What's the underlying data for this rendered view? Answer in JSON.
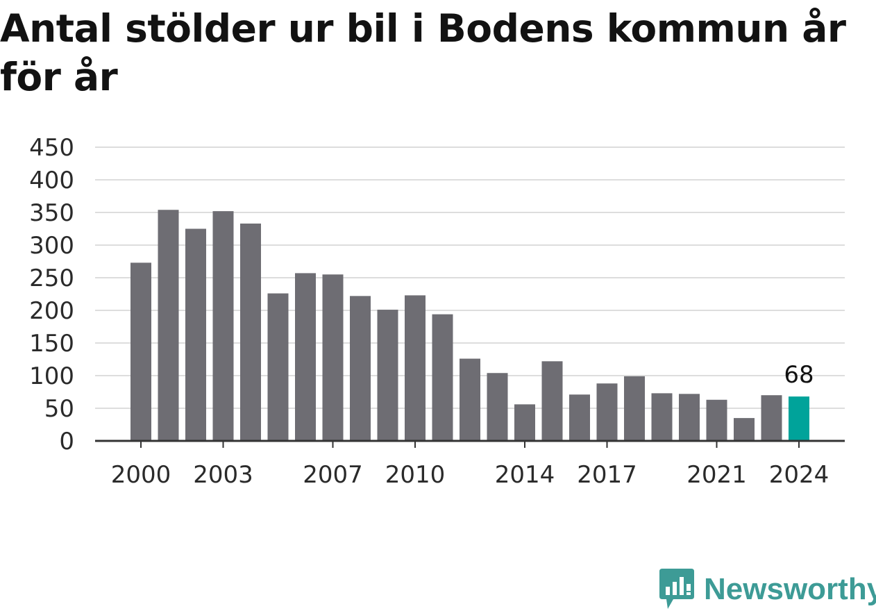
{
  "title": "Antal stölder ur bil i Bodens kommun år för år",
  "brand": {
    "name": "Newsworthy",
    "color": "#3d9b96"
  },
  "colors": {
    "bar": "#6e6d73",
    "highlight": "#00a39a",
    "grid": "#dddddd",
    "axis": "#333333"
  },
  "chart_data": {
    "type": "bar",
    "categories": [
      "2000",
      "2001",
      "2002",
      "2003",
      "2004",
      "2005",
      "2006",
      "2007",
      "2008",
      "2009",
      "2010",
      "2011",
      "2012",
      "2013",
      "2014",
      "2015",
      "2016",
      "2017",
      "2018",
      "2019",
      "2020",
      "2021",
      "2022",
      "2023",
      "2024"
    ],
    "values": [
      273,
      354,
      325,
      352,
      333,
      226,
      257,
      255,
      222,
      201,
      223,
      194,
      126,
      104,
      56,
      122,
      71,
      88,
      99,
      73,
      72,
      63,
      35,
      70,
      68
    ],
    "highlight": "2024",
    "x_tick_labels": [
      "2000",
      "2003",
      "2007",
      "2010",
      "2014",
      "2017",
      "2021",
      "2024"
    ],
    "y_ticks": [
      0,
      50,
      100,
      150,
      200,
      250,
      300,
      350,
      400,
      450
    ],
    "ylim": [
      0,
      450
    ],
    "data_labels": [
      {
        "category": "2024",
        "text": "68"
      }
    ],
    "xlabel": "",
    "ylabel": "",
    "grid": true,
    "legend": false
  }
}
